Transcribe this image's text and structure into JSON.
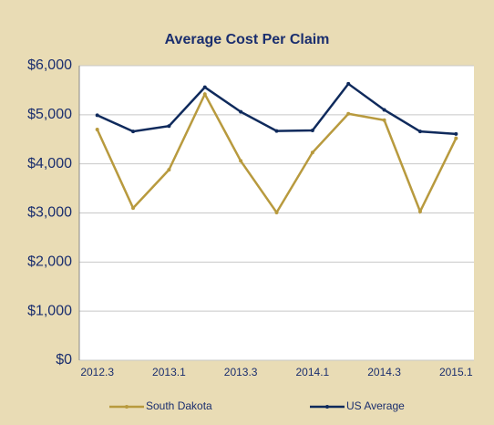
{
  "chart_data": {
    "type": "line",
    "title": "Average Cost Per Claim",
    "categories": [
      "2012.3",
      null,
      "2013.1",
      null,
      "2013.3",
      null,
      "2014.1",
      null,
      "2014.3",
      null,
      "2015.1"
    ],
    "series": [
      {
        "name": "South Dakota",
        "color": "#b89a3e",
        "values": [
          4700,
          3100,
          3880,
          5420,
          4060,
          3010,
          4230,
          5020,
          4890,
          3030,
          4520
        ]
      },
      {
        "name": "US Average",
        "color": "#0f2a5c",
        "values": [
          4990,
          4660,
          4770,
          5560,
          5060,
          4670,
          4680,
          5630,
          5100,
          4660,
          4610
        ]
      }
    ],
    "ylim": [
      0,
      6000
    ],
    "yticks": [
      {
        "value": 0,
        "label": "$0"
      },
      {
        "value": 1000,
        "label": "$1,000"
      },
      {
        "value": 2000,
        "label": "$2,000"
      },
      {
        "value": 3000,
        "label": "$3,000"
      },
      {
        "value": 4000,
        "label": "$4,000"
      },
      {
        "value": 5000,
        "label": "$5,000"
      },
      {
        "value": 6000,
        "label": "$6,000"
      }
    ],
    "grid": true
  }
}
